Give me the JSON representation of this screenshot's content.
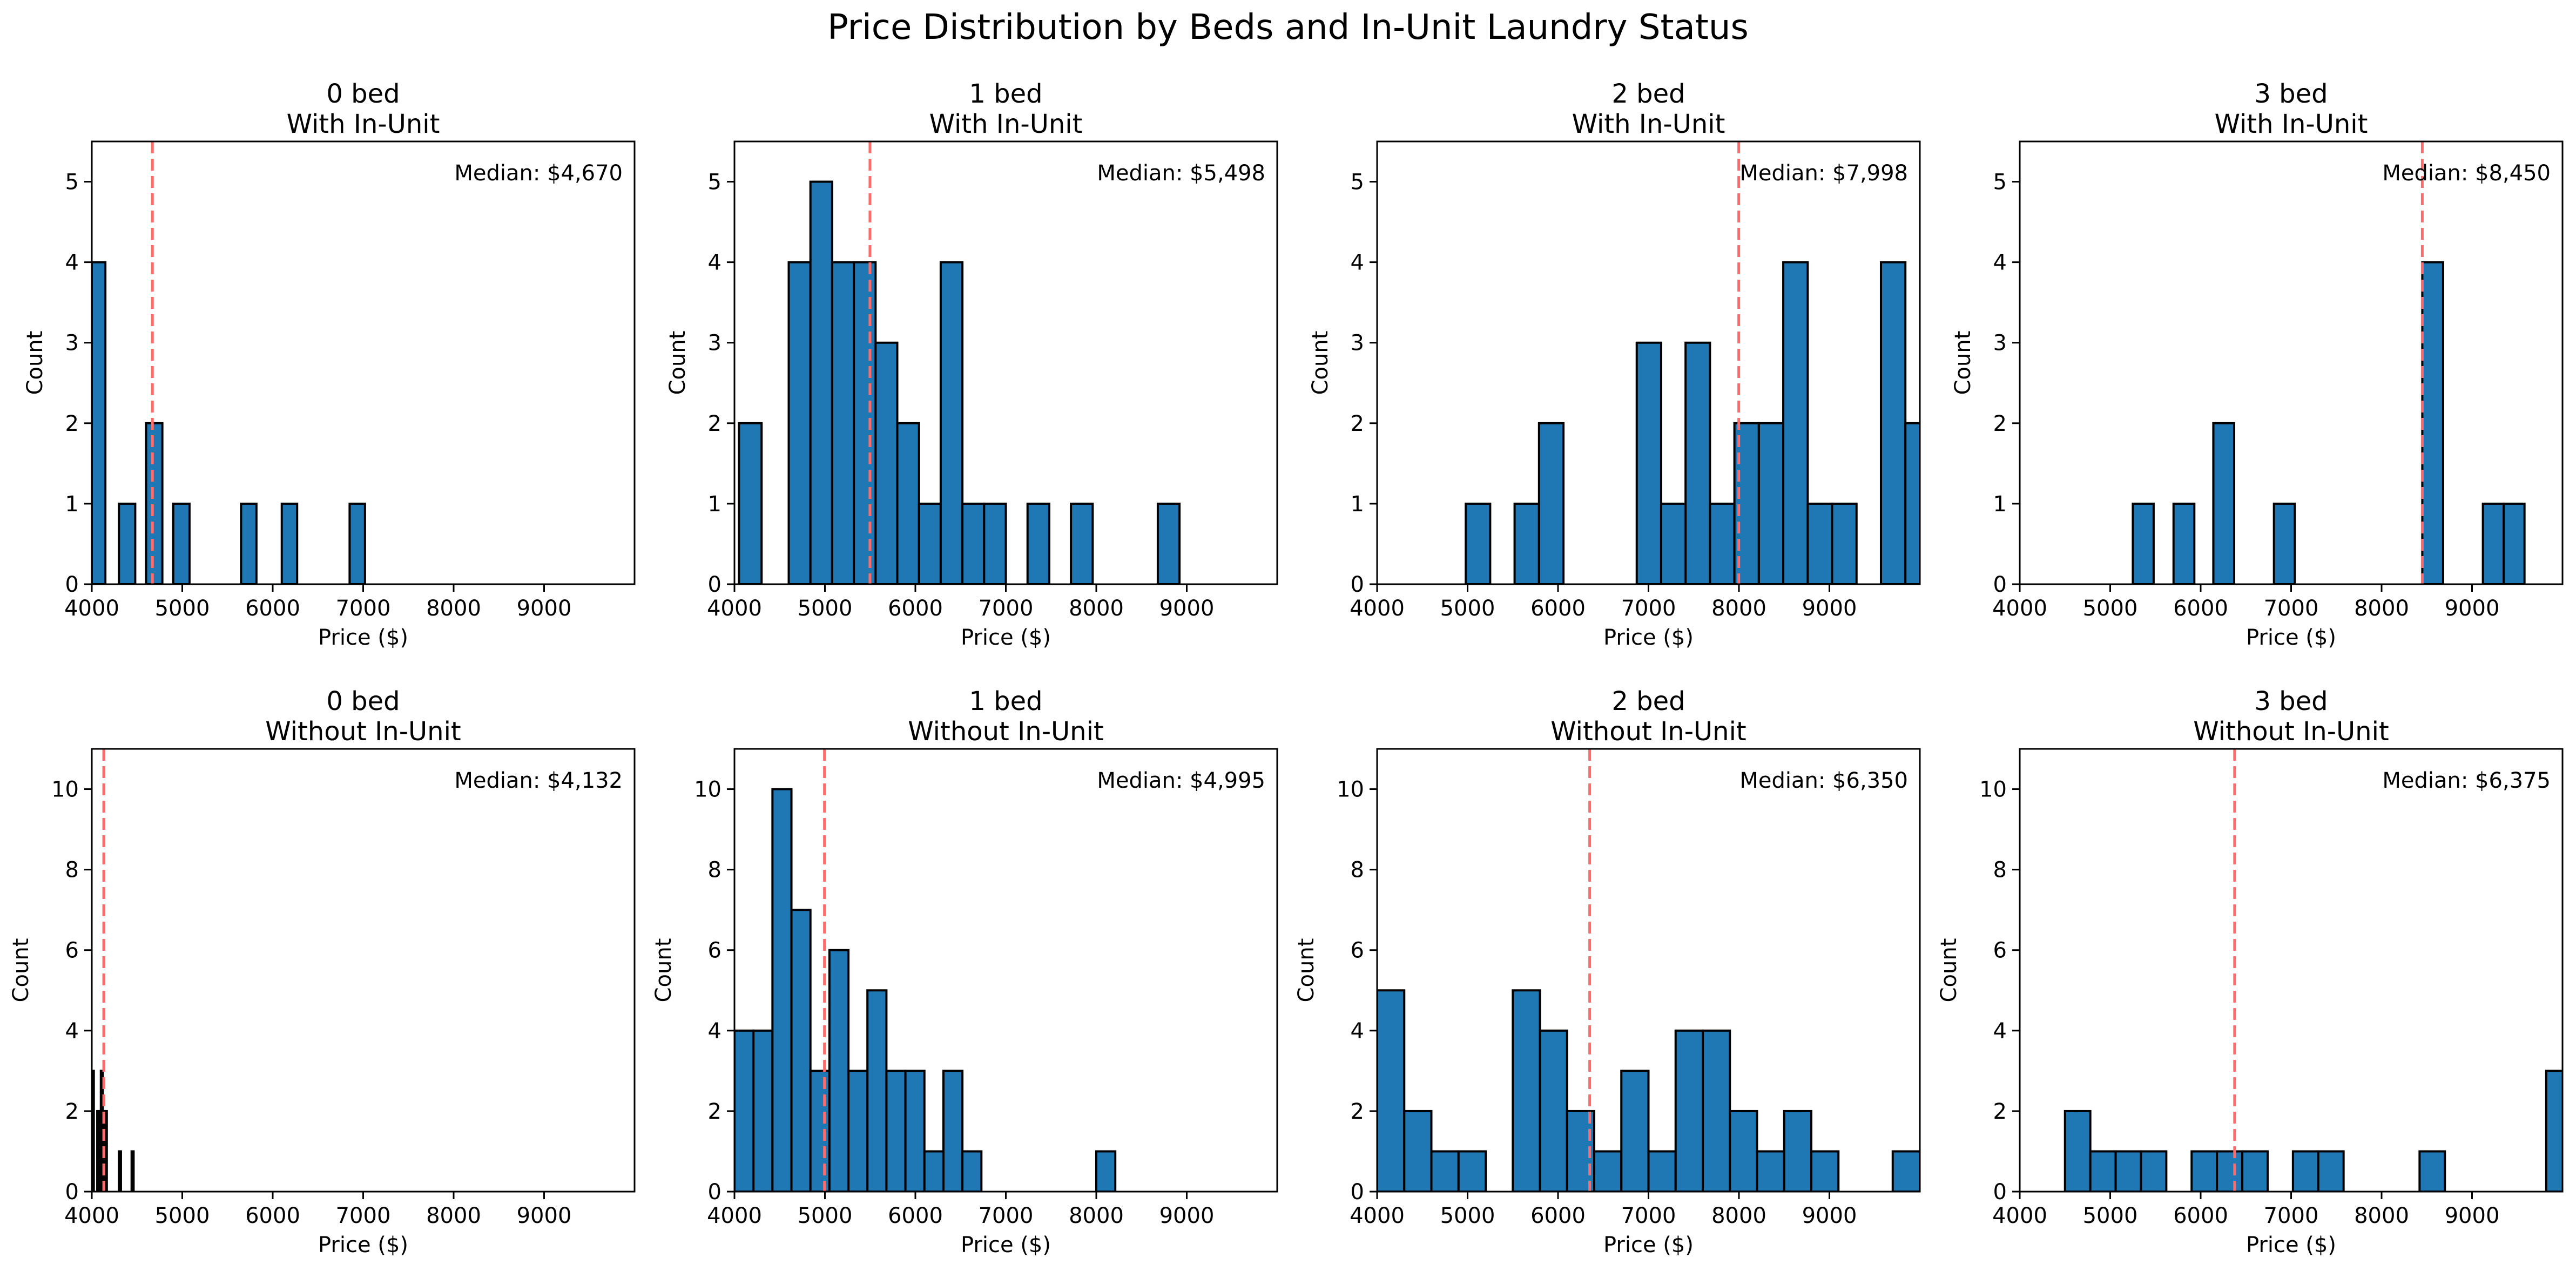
{
  "figure": {
    "title": "Price Distribution by Beds and In-Unit Laundry Status"
  },
  "colors": {
    "bar_fill": "#1f77b4",
    "bar_edge": "#000000",
    "median_line": "#ff6b6b"
  },
  "chart_data": [
    {
      "type": "bar",
      "title": "0 bed\nWith In-Unit",
      "xlabel": "Price ($)",
      "ylabel": "Count",
      "xlim": [
        4000,
        10000
      ],
      "ylim": [
        0,
        5.5
      ],
      "xticks": [
        "4000",
        "5000",
        "6000",
        "7000",
        "8000",
        "9000"
      ],
      "yticks": [
        "0",
        "1",
        "2",
        "3",
        "4",
        "5"
      ],
      "median": 4670,
      "median_label": "Median: $4,670",
      "bins": [
        {
          "x0": 4000,
          "x1": 4150,
          "count": 4
        },
        {
          "x0": 4300,
          "x1": 4480,
          "count": 1
        },
        {
          "x0": 4600,
          "x1": 4780,
          "count": 2
        },
        {
          "x0": 4900,
          "x1": 5080,
          "count": 1
        },
        {
          "x0": 5650,
          "x1": 5820,
          "count": 1
        },
        {
          "x0": 6100,
          "x1": 6270,
          "count": 1
        },
        {
          "x0": 6850,
          "x1": 7020,
          "count": 1
        }
      ]
    },
    {
      "type": "bar",
      "title": "1 bed\nWith In-Unit",
      "xlabel": "Price ($)",
      "ylabel": "Count",
      "xlim": [
        4000,
        10000
      ],
      "ylim": [
        0,
        5.5
      ],
      "xticks": [
        "4000",
        "5000",
        "6000",
        "7000",
        "8000",
        "9000"
      ],
      "yticks": [
        "0",
        "1",
        "2",
        "3",
        "4",
        "5"
      ],
      "median": 5498,
      "median_label": "Median: $5,498",
      "bins": [
        {
          "x0": 4050,
          "x1": 4300,
          "count": 2
        },
        {
          "x0": 4600,
          "x1": 4840,
          "count": 4
        },
        {
          "x0": 4840,
          "x1": 5080,
          "count": 5
        },
        {
          "x0": 5080,
          "x1": 5320,
          "count": 4
        },
        {
          "x0": 5320,
          "x1": 5560,
          "count": 4
        },
        {
          "x0": 5560,
          "x1": 5800,
          "count": 3
        },
        {
          "x0": 5800,
          "x1": 6040,
          "count": 2
        },
        {
          "x0": 6040,
          "x1": 6280,
          "count": 1
        },
        {
          "x0": 6280,
          "x1": 6520,
          "count": 4
        },
        {
          "x0": 6520,
          "x1": 6760,
          "count": 1
        },
        {
          "x0": 6760,
          "x1": 7000,
          "count": 1
        },
        {
          "x0": 7240,
          "x1": 7480,
          "count": 1
        },
        {
          "x0": 7720,
          "x1": 7960,
          "count": 1
        },
        {
          "x0": 8680,
          "x1": 8920,
          "count": 1
        }
      ]
    },
    {
      "type": "bar",
      "title": "2 bed\nWith In-Unit",
      "xlabel": "Price ($)",
      "ylabel": "Count",
      "xlim": [
        4000,
        10000
      ],
      "ylim": [
        0,
        5.5
      ],
      "xticks": [
        "4000",
        "5000",
        "6000",
        "7000",
        "8000",
        "9000"
      ],
      "yticks": [
        "0",
        "1",
        "2",
        "3",
        "4",
        "5"
      ],
      "median": 7998,
      "median_label": "Median: $7,998",
      "bins": [
        {
          "x0": 4980,
          "x1": 5250,
          "count": 1
        },
        {
          "x0": 5520,
          "x1": 5790,
          "count": 1
        },
        {
          "x0": 5790,
          "x1": 6060,
          "count": 2
        },
        {
          "x0": 6870,
          "x1": 7140,
          "count": 3
        },
        {
          "x0": 7140,
          "x1": 7410,
          "count": 1
        },
        {
          "x0": 7410,
          "x1": 7680,
          "count": 3
        },
        {
          "x0": 7680,
          "x1": 7950,
          "count": 1
        },
        {
          "x0": 7950,
          "x1": 8220,
          "count": 2
        },
        {
          "x0": 8220,
          "x1": 8490,
          "count": 2
        },
        {
          "x0": 8490,
          "x1": 8760,
          "count": 4
        },
        {
          "x0": 8760,
          "x1": 9030,
          "count": 1
        },
        {
          "x0": 9030,
          "x1": 9300,
          "count": 1
        },
        {
          "x0": 9570,
          "x1": 9840,
          "count": 4
        },
        {
          "x0": 9840,
          "x1": 10110,
          "count": 2
        }
      ]
    },
    {
      "type": "bar",
      "title": "3 bed\nWith In-Unit",
      "xlabel": "Price ($)",
      "ylabel": "Count",
      "xlim": [
        4000,
        10000
      ],
      "ylim": [
        0,
        5.5
      ],
      "xticks": [
        "4000",
        "5000",
        "6000",
        "7000",
        "8000",
        "9000"
      ],
      "yticks": [
        "0",
        "1",
        "2",
        "3",
        "4",
        "5"
      ],
      "median": 8450,
      "median_label": "Median: $8,450",
      "bins": [
        {
          "x0": 5250,
          "x1": 5480,
          "count": 1
        },
        {
          "x0": 5700,
          "x1": 5930,
          "count": 1
        },
        {
          "x0": 6140,
          "x1": 6370,
          "count": 2
        },
        {
          "x0": 6810,
          "x1": 7040,
          "count": 1
        },
        {
          "x0": 8450,
          "x1": 8680,
          "count": 4
        },
        {
          "x0": 9120,
          "x1": 9350,
          "count": 1
        },
        {
          "x0": 9350,
          "x1": 9580,
          "count": 1
        }
      ]
    },
    {
      "type": "bar",
      "title": "0 bed\nWithout In-Unit",
      "xlabel": "Price ($)",
      "ylabel": "Count",
      "xlim": [
        4000,
        10000
      ],
      "ylim": [
        0,
        11
      ],
      "xticks": [
        "4000",
        "5000",
        "6000",
        "7000",
        "8000",
        "9000"
      ],
      "yticks": [
        "0",
        "2",
        "4",
        "6",
        "8",
        "10"
      ],
      "median": 4132,
      "median_label": "Median: $4,132",
      "bins": [
        {
          "x0": 4000,
          "x1": 4022,
          "count": 3
        },
        {
          "x0": 4060,
          "x1": 4082,
          "count": 2
        },
        {
          "x0": 4100,
          "x1": 4122,
          "count": 3
        },
        {
          "x0": 4122,
          "x1": 4144,
          "count": 2
        },
        {
          "x0": 4144,
          "x1": 4166,
          "count": 2
        },
        {
          "x0": 4300,
          "x1": 4322,
          "count": 1
        },
        {
          "x0": 4440,
          "x1": 4462,
          "count": 1
        }
      ]
    },
    {
      "type": "bar",
      "title": "1 bed\nWithout In-Unit",
      "xlabel": "Price ($)",
      "ylabel": "Count",
      "xlim": [
        4000,
        10000
      ],
      "ylim": [
        0,
        11
      ],
      "xticks": [
        "4000",
        "5000",
        "6000",
        "7000",
        "8000",
        "9000"
      ],
      "yticks": [
        "0",
        "2",
        "4",
        "6",
        "8",
        "10"
      ],
      "median": 4995,
      "median_label": "Median: $4,995",
      "bins": [
        {
          "x0": 4000,
          "x1": 4210,
          "count": 4
        },
        {
          "x0": 4210,
          "x1": 4420,
          "count": 4
        },
        {
          "x0": 4420,
          "x1": 4630,
          "count": 10
        },
        {
          "x0": 4630,
          "x1": 4840,
          "count": 7
        },
        {
          "x0": 4840,
          "x1": 5050,
          "count": 3
        },
        {
          "x0": 5050,
          "x1": 5260,
          "count": 6
        },
        {
          "x0": 5260,
          "x1": 5470,
          "count": 3
        },
        {
          "x0": 5470,
          "x1": 5680,
          "count": 5
        },
        {
          "x0": 5680,
          "x1": 5890,
          "count": 3
        },
        {
          "x0": 5890,
          "x1": 6100,
          "count": 3
        },
        {
          "x0": 6100,
          "x1": 6310,
          "count": 1
        },
        {
          "x0": 6310,
          "x1": 6520,
          "count": 3
        },
        {
          "x0": 6520,
          "x1": 6730,
          "count": 1
        },
        {
          "x0": 8000,
          "x1": 8210,
          "count": 1
        }
      ]
    },
    {
      "type": "bar",
      "title": "2 bed\nWithout In-Unit",
      "xlabel": "Price ($)",
      "ylabel": "Count",
      "xlim": [
        4000,
        10000
      ],
      "ylim": [
        0,
        11
      ],
      "xticks": [
        "4000",
        "5000",
        "6000",
        "7000",
        "8000",
        "9000"
      ],
      "yticks": [
        "0",
        "2",
        "4",
        "6",
        "8",
        "10"
      ],
      "median": 6350,
      "median_label": "Median: $6,350",
      "bins": [
        {
          "x0": 4000,
          "x1": 4300,
          "count": 5
        },
        {
          "x0": 4300,
          "x1": 4600,
          "count": 2
        },
        {
          "x0": 4600,
          "x1": 4900,
          "count": 1
        },
        {
          "x0": 4900,
          "x1": 5200,
          "count": 1
        },
        {
          "x0": 5500,
          "x1": 5800,
          "count": 5
        },
        {
          "x0": 5800,
          "x1": 6100,
          "count": 4
        },
        {
          "x0": 6100,
          "x1": 6400,
          "count": 2
        },
        {
          "x0": 6400,
          "x1": 6700,
          "count": 1
        },
        {
          "x0": 6700,
          "x1": 7000,
          "count": 3
        },
        {
          "x0": 7000,
          "x1": 7300,
          "count": 1
        },
        {
          "x0": 7300,
          "x1": 7600,
          "count": 4
        },
        {
          "x0": 7600,
          "x1": 7900,
          "count": 4
        },
        {
          "x0": 7900,
          "x1": 8200,
          "count": 2
        },
        {
          "x0": 8200,
          "x1": 8500,
          "count": 1
        },
        {
          "x0": 8500,
          "x1": 8800,
          "count": 2
        },
        {
          "x0": 8800,
          "x1": 9100,
          "count": 1
        },
        {
          "x0": 9700,
          "x1": 10000,
          "count": 1
        }
      ]
    },
    {
      "type": "bar",
      "title": "3 bed\nWithout In-Unit",
      "xlabel": "Price ($)",
      "ylabel": "Count",
      "xlim": [
        4000,
        10000
      ],
      "ylim": [
        0,
        11
      ],
      "xticks": [
        "4000",
        "5000",
        "6000",
        "7000",
        "8000",
        "9000"
      ],
      "yticks": [
        "0",
        "2",
        "4",
        "6",
        "8",
        "10"
      ],
      "median": 6375,
      "median_label": "Median: $6,375",
      "bins": [
        {
          "x0": 4500,
          "x1": 4780,
          "count": 2
        },
        {
          "x0": 4780,
          "x1": 5060,
          "count": 1
        },
        {
          "x0": 5060,
          "x1": 5340,
          "count": 1
        },
        {
          "x0": 5340,
          "x1": 5620,
          "count": 1
        },
        {
          "x0": 5900,
          "x1": 6180,
          "count": 1
        },
        {
          "x0": 6180,
          "x1": 6460,
          "count": 1
        },
        {
          "x0": 6460,
          "x1": 6740,
          "count": 1
        },
        {
          "x0": 7020,
          "x1": 7300,
          "count": 1
        },
        {
          "x0": 7300,
          "x1": 7580,
          "count": 1
        },
        {
          "x0": 8420,
          "x1": 8700,
          "count": 1
        },
        {
          "x0": 9820,
          "x1": 10100,
          "count": 3
        }
      ]
    }
  ]
}
